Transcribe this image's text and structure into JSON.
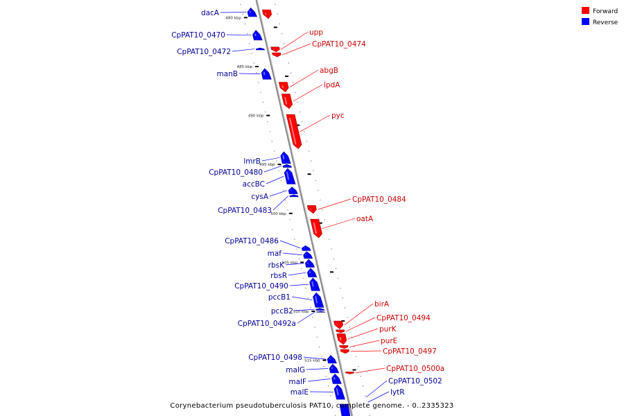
{
  "caption": "Corynebacterium pseudotuberculosis PAT10, complete genome. - 0..2335323",
  "legend": [
    {
      "label": "Forward",
      "color": "#ff0000"
    },
    {
      "label": "Reverse",
      "color": "#0000ff"
    }
  ],
  "colors": {
    "forward": "#ff0000",
    "reverse": "#0000ff",
    "forward_label": "#cc0000",
    "reverse_label": "#000099",
    "backbone": "#888888"
  },
  "ticks": [
    "480 kbp",
    "485 kbp",
    "490 kbp",
    "495 kbp",
    "500 kbp",
    "505 kbp",
    "510 kbp",
    "515 kbp"
  ],
  "reverse_genes": [
    {
      "label": "dacA",
      "start": 479.0,
      "end": 479.9
    },
    {
      "label": "CpPAT10_0470",
      "start": 481.3,
      "end": 482.3
    },
    {
      "label": "CpPAT10_0472",
      "start": 483.1,
      "end": 483.3
    },
    {
      "label": "manB",
      "start": 485.2,
      "end": 486.3
    },
    {
      "label": "lmrB",
      "start": 493.7,
      "end": 494.9
    },
    {
      "label": "CpPAT10_0480",
      "start": 495.0,
      "end": 495.3
    },
    {
      "label": "accBC",
      "start": 495.4,
      "end": 497.0
    },
    {
      "label": "cysA",
      "start": 497.3,
      "end": 498.0
    },
    {
      "label": "CpPAT10_0483",
      "start": 498.1,
      "end": 498.3
    },
    {
      "label": "CpPAT10_0486",
      "start": 503.3,
      "end": 503.8
    },
    {
      "label": "maf",
      "start": 503.9,
      "end": 504.6
    },
    {
      "label": "rbsK",
      "start": 504.7,
      "end": 505.5
    },
    {
      "label": "rbsR",
      "start": 505.6,
      "end": 506.5
    },
    {
      "label": "CpPAT10_0490",
      "start": 506.6,
      "end": 507.9
    },
    {
      "label": "pccB1",
      "start": 508.1,
      "end": 509.6
    },
    {
      "label": "pccB2",
      "start": 509.7,
      "end": 509.9
    },
    {
      "label": "CpPAT10_0492a",
      "start": 510.0,
      "end": 510.1
    },
    {
      "label": "CpPAT10_0498",
      "start": 514.5,
      "end": 515.3
    },
    {
      "label": "malG",
      "start": 515.4,
      "end": 516.3
    },
    {
      "label": "malF",
      "start": 516.4,
      "end": 517.4
    },
    {
      "label": "malE",
      "start": 517.5,
      "end": 519.0
    }
  ],
  "forward_genes": [
    {
      "label": "",
      "start": 479.2,
      "end": 480.1
    },
    {
      "label": "upp",
      "start": 483.0,
      "end": 483.5
    },
    {
      "label": "CpPAT10_0474",
      "start": 483.6,
      "end": 484.0
    },
    {
      "label": "abgB",
      "start": 486.6,
      "end": 487.6
    },
    {
      "label": "lpdA",
      "start": 487.8,
      "end": 489.3
    },
    {
      "label": "pyc",
      "start": 489.9,
      "end": 493.4
    },
    {
      "label": "CpPAT10_0484",
      "start": 499.2,
      "end": 500.0
    },
    {
      "label": "oatA",
      "start": 500.6,
      "end": 502.5
    },
    {
      "label": "birA",
      "start": 511.0,
      "end": 511.8
    },
    {
      "label": "CpPAT10_0494",
      "start": 511.9,
      "end": 512.2
    },
    {
      "label": "purK",
      "start": 512.3,
      "end": 513.4
    },
    {
      "label": "purE",
      "start": 513.5,
      "end": 513.8
    },
    {
      "label": "CpPAT10_0497",
      "start": 513.9,
      "end": 514.3
    },
    {
      "label": "CpPAT10_0500a",
      "start": 516.2,
      "end": 516.4
    }
  ],
  "extra_labels": [
    {
      "label": "CpPAT10_0502"
    },
    {
      "label": "lytR"
    }
  ]
}
